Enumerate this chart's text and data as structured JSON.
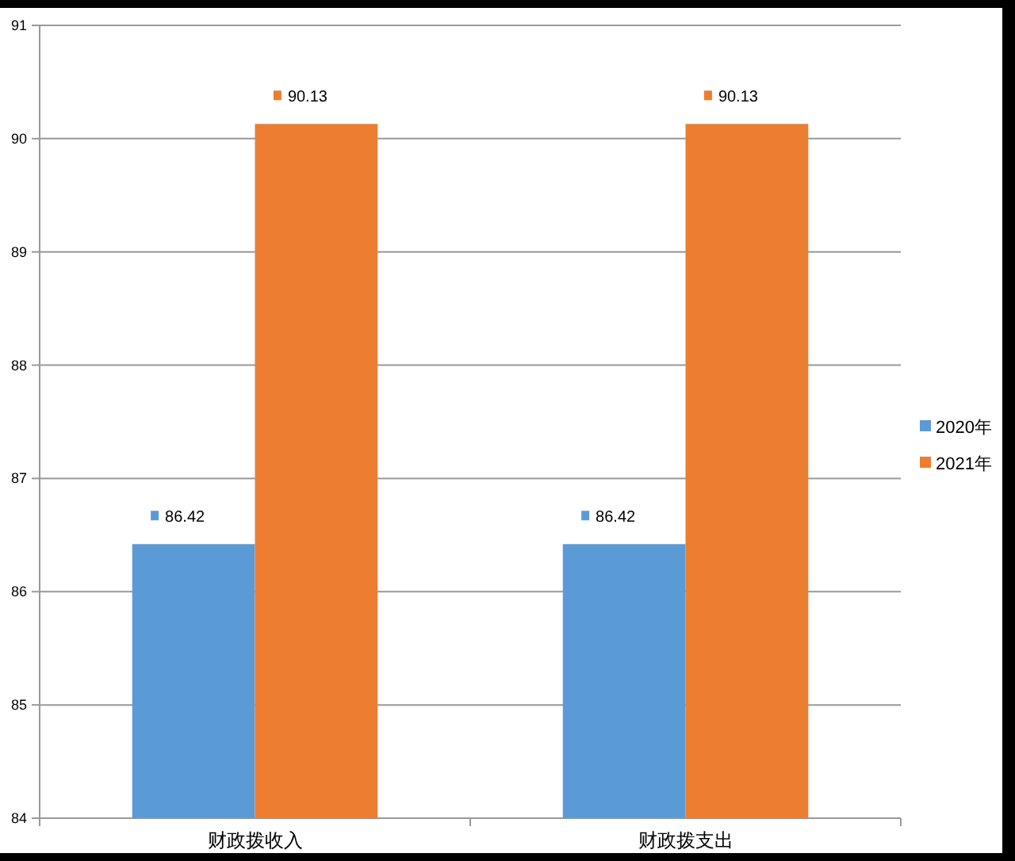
{
  "chart_data": {
    "type": "bar",
    "categories": [
      "财政拨收入",
      "财政拨支出"
    ],
    "series": [
      {
        "name": "2020年",
        "color": "#5b9bd5",
        "values": [
          86.42,
          86.42
        ]
      },
      {
        "name": "2021年",
        "color": "#ed7d31",
        "values": [
          90.13,
          90.13
        ]
      }
    ],
    "ylim": [
      84,
      91
    ],
    "yticks": [
      84,
      85,
      86,
      87,
      88,
      89,
      90,
      91
    ],
    "grid": "y",
    "legend": "right",
    "data_labels": true
  }
}
